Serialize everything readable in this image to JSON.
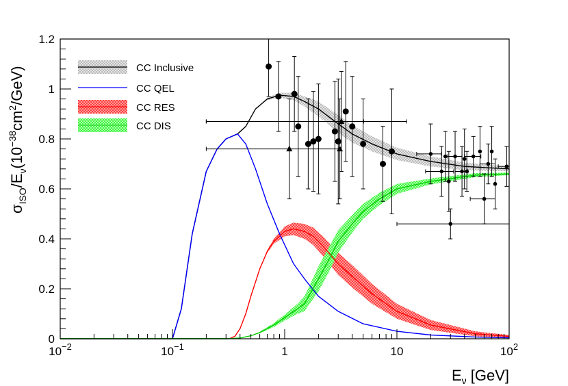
{
  "chart_data": {
    "type": "line",
    "title": "",
    "xlabel": {
      "main": "E",
      "sub": "ν",
      "unit": " [GeV]"
    },
    "ylabel": {
      "sigma": "σ",
      "sub_iso": "ISO",
      "slash_e": "/E",
      "sub_nu": "ν",
      "open": "(10",
      "exp1": "−38",
      "cm": "cm",
      "exp2": "2",
      "close": "/GeV)"
    },
    "xscale": "log",
    "xlim": [
      0.01,
      100
    ],
    "ylim": [
      0,
      1.2
    ],
    "x_ticks": [
      {
        "value": 0.01,
        "base": "10",
        "exp": "−2"
      },
      {
        "value": 0.1,
        "base": "10",
        "exp": "−1"
      },
      {
        "value": 1,
        "base": "1",
        "exp": ""
      },
      {
        "value": 10,
        "base": "10",
        "exp": ""
      },
      {
        "value": 100,
        "base": "10",
        "exp": "2"
      }
    ],
    "y_ticks": [
      {
        "value": 0,
        "label": "0"
      },
      {
        "value": 0.2,
        "label": "0.2"
      },
      {
        "value": 0.4,
        "label": "0.4"
      },
      {
        "value": 0.6,
        "label": "0.6"
      },
      {
        "value": 0.8,
        "label": "0.8"
      },
      {
        "value": 1.0,
        "label": "1"
      },
      {
        "value": 1.2,
        "label": "1.2"
      }
    ],
    "legend": {
      "position": "top-left",
      "entries": [
        {
          "label": "CC Inclusive",
          "color": "#000000",
          "band": "#aaaaaa"
        },
        {
          "label": "CC QEL",
          "color": "#0000ff",
          "band": ""
        },
        {
          "label": "CC RES",
          "color": "#ff0000",
          "band": "#ff0000"
        },
        {
          "label": "CC DIS",
          "color": "#00cc00",
          "band": "#00ff00"
        }
      ]
    },
    "series": [
      {
        "name": "CC Inclusive",
        "color": "#000000",
        "x": [
          0.1,
          0.12,
          0.15,
          0.2,
          0.25,
          0.3,
          0.38,
          0.45,
          0.55,
          0.7,
          0.9,
          1.2,
          1.5,
          2,
          3,
          4,
          6,
          10,
          20,
          40,
          100
        ],
        "y": [
          0,
          0.12,
          0.42,
          0.67,
          0.76,
          0.8,
          0.82,
          0.85,
          0.92,
          0.96,
          0.975,
          0.97,
          0.95,
          0.92,
          0.86,
          0.82,
          0.78,
          0.74,
          0.71,
          0.69,
          0.68
        ],
        "band_half": [
          0,
          0,
          0,
          0,
          0,
          0,
          0,
          0,
          0,
          0.005,
          0.01,
          0.015,
          0.02,
          0.03,
          0.035,
          0.035,
          0.03,
          0.025,
          0.02,
          0.015,
          0.01
        ]
      },
      {
        "name": "CC QEL",
        "color": "#0000ff",
        "x": [
          0.1,
          0.12,
          0.15,
          0.2,
          0.25,
          0.3,
          0.38,
          0.45,
          0.55,
          0.7,
          0.9,
          1.2,
          1.5,
          2,
          3,
          5,
          10,
          20,
          50,
          100
        ],
        "y": [
          0,
          0.12,
          0.42,
          0.67,
          0.76,
          0.8,
          0.82,
          0.78,
          0.68,
          0.54,
          0.42,
          0.3,
          0.24,
          0.17,
          0.11,
          0.06,
          0.03,
          0.015,
          0.007,
          0.004
        ],
        "band_half": []
      },
      {
        "name": "CC RES",
        "color": "#ff0000",
        "x": [
          0.32,
          0.36,
          0.4,
          0.45,
          0.5,
          0.6,
          0.7,
          0.8,
          1.0,
          1.2,
          1.5,
          1.8,
          2.2,
          3,
          4,
          6,
          10,
          20,
          50,
          100
        ],
        "y": [
          0,
          0.01,
          0.04,
          0.1,
          0.17,
          0.28,
          0.35,
          0.39,
          0.43,
          0.44,
          0.43,
          0.41,
          0.37,
          0.3,
          0.25,
          0.18,
          0.11,
          0.055,
          0.02,
          0.01
        ],
        "band_half": [
          0,
          0,
          0,
          0,
          0,
          0,
          0.005,
          0.01,
          0.02,
          0.025,
          0.03,
          0.035,
          0.04,
          0.045,
          0.045,
          0.04,
          0.03,
          0.02,
          0.01,
          0.005
        ]
      },
      {
        "name": "CC DIS",
        "color": "#00cc00",
        "x": [
          0.1,
          0.3,
          0.4,
          0.5,
          0.6,
          0.8,
          1.0,
          1.3,
          1.5,
          2,
          2.5,
          3,
          4,
          5,
          7,
          10,
          20,
          50,
          100
        ],
        "y": [
          0,
          0,
          0.003,
          0.012,
          0.025,
          0.055,
          0.085,
          0.12,
          0.14,
          0.24,
          0.32,
          0.39,
          0.46,
          0.51,
          0.56,
          0.6,
          0.63,
          0.655,
          0.66
        ],
        "band_half": [
          0,
          0,
          0,
          0,
          0.003,
          0.008,
          0.012,
          0.02,
          0.03,
          0.05,
          0.05,
          0.045,
          0.035,
          0.03,
          0.025,
          0.02,
          0.012,
          0.008,
          0.005
        ]
      }
    ],
    "data_points": [
      {
        "x": 0.72,
        "y": 1.09,
        "yerr": 0.12,
        "xerr_lo": 0,
        "xerr_hi": 0,
        "marker": "circle"
      },
      {
        "x": 0.88,
        "y": 0.97,
        "yerr": 0.14,
        "xerr_lo": 0,
        "xerr_hi": 0,
        "marker": "circle"
      },
      {
        "x": 1.22,
        "y": 0.98,
        "yerr": 0.15,
        "xerr_lo": 0,
        "xerr_hi": 0,
        "marker": "circle"
      },
      {
        "x": 1.32,
        "y": 0.85,
        "yerr": 0.2,
        "xerr_lo": 0,
        "xerr_hi": 0,
        "marker": "circle"
      },
      {
        "x": 1.62,
        "y": 0.78,
        "yerr": 0.18,
        "xerr_lo": 0,
        "xerr_hi": 0,
        "marker": "circle"
      },
      {
        "x": 1.8,
        "y": 0.79,
        "yerr": 0.2,
        "xerr_lo": 0,
        "xerr_hi": 0,
        "marker": "circle"
      },
      {
        "x": 2.0,
        "y": 0.8,
        "yerr": 0.22,
        "xerr_lo": 0,
        "xerr_hi": 0,
        "marker": "circle"
      },
      {
        "x": 2.8,
        "y": 0.83,
        "yerr": 0.2,
        "xerr_lo": 0,
        "xerr_hi": 0,
        "marker": "circle"
      },
      {
        "x": 3.0,
        "y": 0.79,
        "yerr": 0.25,
        "xerr_lo": 0,
        "xerr_hi": 0,
        "marker": "circle"
      },
      {
        "x": 3.5,
        "y": 0.91,
        "yerr": 0.2,
        "xerr_lo": 0,
        "xerr_hi": 0,
        "marker": "circle"
      },
      {
        "x": 4.0,
        "y": 0.85,
        "yerr": 0.2,
        "xerr_lo": 0,
        "xerr_hi": 0,
        "marker": "circle"
      },
      {
        "x": 5.0,
        "y": 0.78,
        "yerr": 0.18,
        "xerr_lo": 0,
        "xerr_hi": 0,
        "marker": "circle"
      },
      {
        "x": 7.5,
        "y": 0.7,
        "yerr": 0.15,
        "xerr_lo": 0,
        "xerr_hi": 0,
        "marker": "circle"
      },
      {
        "x": 9.0,
        "y": 0.75,
        "yerr": 0.25,
        "xerr_lo": 0,
        "xerr_hi": 0,
        "marker": "circle"
      },
      {
        "x": 1.1,
        "y": 0.76,
        "yerr": 0.2,
        "xerr_lo": 0.9,
        "xerr_hi": 2.0,
        "marker": "triangle"
      },
      {
        "x": 3.2,
        "y": 0.87,
        "yerr": 0.2,
        "xerr_lo": 3.0,
        "xerr_hi": 9.0,
        "marker": "triangle"
      },
      {
        "x": 3.1,
        "y": 0.76,
        "yerr": 0.2,
        "xerr_lo": 0,
        "xerr_hi": 0,
        "marker": "triangle"
      },
      {
        "x": 20,
        "y": 0.74,
        "yerr": 0.12,
        "xerr_lo": 5,
        "xerr_hi": 5,
        "marker": "dot"
      },
      {
        "x": 25,
        "y": 0.67,
        "yerr": 0.1,
        "xerr_lo": 7,
        "xerr_hi": 7,
        "marker": "dot"
      },
      {
        "x": 27,
        "y": 0.73,
        "yerr": 0.1,
        "xerr_lo": 0,
        "xerr_hi": 0,
        "marker": "dot"
      },
      {
        "x": 29,
        "y": 0.63,
        "yerr": 0.12,
        "xerr_lo": 0,
        "xerr_hi": 0,
        "marker": "dot"
      },
      {
        "x": 33,
        "y": 0.73,
        "yerr": 0.1,
        "xerr_lo": 5,
        "xerr_hi": 5,
        "marker": "dot"
      },
      {
        "x": 38,
        "y": 0.67,
        "yerr": 0.1,
        "xerr_lo": 5,
        "xerr_hi": 5,
        "marker": "dot"
      },
      {
        "x": 42,
        "y": 0.67,
        "yerr": 0.08,
        "xerr_lo": 0,
        "xerr_hi": 0,
        "marker": "dot"
      },
      {
        "x": 48,
        "y": 0.73,
        "yerr": 0.08,
        "xerr_lo": 8,
        "xerr_hi": 8,
        "marker": "dot"
      },
      {
        "x": 55,
        "y": 0.75,
        "yerr": 0.1,
        "xerr_lo": 0,
        "xerr_hi": 0,
        "marker": "dot"
      },
      {
        "x": 65,
        "y": 0.7,
        "yerr": 0.08,
        "xerr_lo": 10,
        "xerr_hi": 10,
        "marker": "dot"
      },
      {
        "x": 70,
        "y": 0.75,
        "yerr": 0.1,
        "xerr_lo": 0,
        "xerr_hi": 0,
        "marker": "dot"
      },
      {
        "x": 95,
        "y": 0.69,
        "yerr": 0.08,
        "xerr_lo": 15,
        "xerr_hi": 5,
        "marker": "dot"
      },
      {
        "x": 30,
        "y": 0.46,
        "yerr": 0.06,
        "xerr_lo": 20,
        "xerr_hi": 70,
        "marker": "dot"
      },
      {
        "x": 60,
        "y": 0.56,
        "yerr": 0.1,
        "xerr_lo": 15,
        "xerr_hi": 15,
        "marker": "dot"
      },
      {
        "x": 40,
        "y": 0.72,
        "yerr": 0.12,
        "xerr_lo": 0,
        "xerr_hi": 0,
        "marker": "dot"
      },
      {
        "x": 75,
        "y": 0.62,
        "yerr": 0.1,
        "xerr_lo": 0,
        "xerr_hi": 0,
        "marker": "dot"
      },
      {
        "x": 0.55,
        "y": 0.87,
        "yerr": 0,
        "xerr_lo": 0.35,
        "xerr_hi": 4.5,
        "marker": "none"
      }
    ]
  }
}
